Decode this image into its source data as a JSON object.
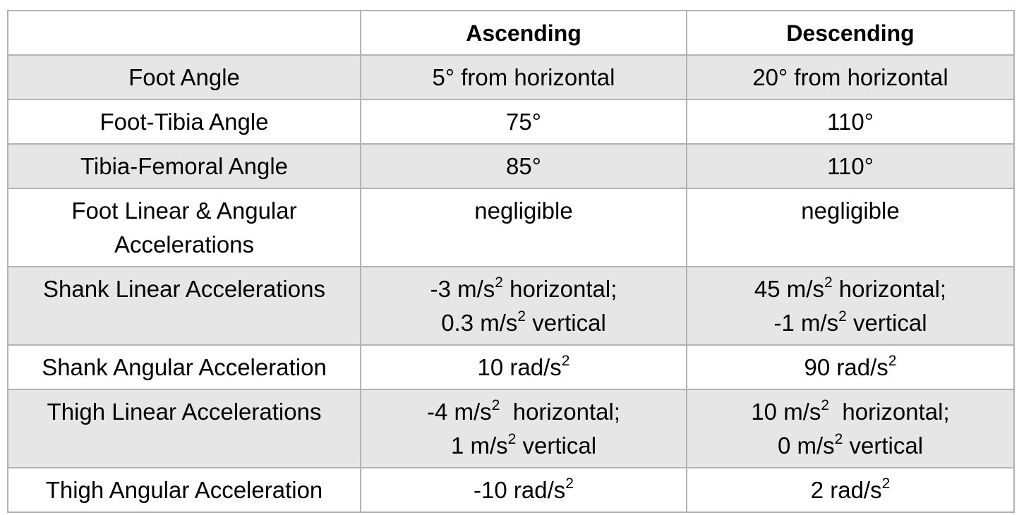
{
  "table": {
    "header": [
      "",
      "Ascending",
      "Descending"
    ],
    "rows": [
      {
        "label": [
          "Foot Angle"
        ],
        "ascending": [
          {
            "pre": "5° from horizontal",
            "sup": "",
            "post": ""
          }
        ],
        "descending": [
          {
            "pre": "20° from horizontal",
            "sup": "",
            "post": ""
          }
        ]
      },
      {
        "label": [
          "Foot-Tibia Angle"
        ],
        "ascending": [
          {
            "pre": "75°",
            "sup": "",
            "post": ""
          }
        ],
        "descending": [
          {
            "pre": "110°",
            "sup": "",
            "post": ""
          }
        ]
      },
      {
        "label": [
          "Tibia-Femoral Angle"
        ],
        "ascending": [
          {
            "pre": "85°",
            "sup": "",
            "post": ""
          }
        ],
        "descending": [
          {
            "pre": "110°",
            "sup": "",
            "post": ""
          }
        ]
      },
      {
        "label": [
          "Foot Linear & Angular",
          "Accelerations"
        ],
        "ascending": [
          {
            "pre": "negligible",
            "sup": "",
            "post": ""
          }
        ],
        "descending": [
          {
            "pre": "negligible",
            "sup": "",
            "post": ""
          }
        ]
      },
      {
        "label": [
          "Shank Linear Accelerations"
        ],
        "ascending": [
          {
            "pre": "-3 m/s",
            "sup": "2",
            "post": " horizontal;"
          },
          {
            "pre": "0.3 m/s",
            "sup": "2",
            "post": " vertical"
          }
        ],
        "descending": [
          {
            "pre": "45 m/s",
            "sup": "2",
            "post": " horizontal;"
          },
          {
            "pre": "-1 m/s",
            "sup": "2",
            "post": " vertical"
          }
        ]
      },
      {
        "label": [
          "Shank Angular Acceleration"
        ],
        "ascending": [
          {
            "pre": "10 rad/s",
            "sup": "2",
            "post": ""
          }
        ],
        "descending": [
          {
            "pre": "90 rad/s",
            "sup": "2",
            "post": ""
          }
        ]
      },
      {
        "label": [
          "Thigh Linear Accelerations"
        ],
        "ascending": [
          {
            "pre": "-4 m/s",
            "sup": "2",
            "post": "  horizontal;"
          },
          {
            "pre": "1 m/s",
            "sup": "2",
            "post": " vertical"
          }
        ],
        "descending": [
          {
            "pre": "10 m/s",
            "sup": "2",
            "post": "  horizontal;"
          },
          {
            "pre": "0 m/s",
            "sup": "2",
            "post": " vertical"
          }
        ]
      },
      {
        "label": [
          "Thigh Angular Acceleration"
        ],
        "ascending": [
          {
            "pre": "-10 rad/s",
            "sup": "2",
            "post": ""
          }
        ],
        "descending": [
          {
            "pre": "2 rad/s",
            "sup": "2",
            "post": ""
          }
        ]
      }
    ]
  }
}
